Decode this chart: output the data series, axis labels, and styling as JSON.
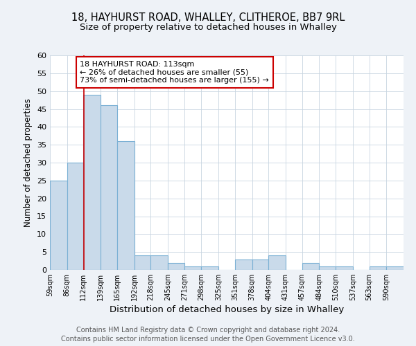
{
  "title_line1": "18, HAYHURST ROAD, WHALLEY, CLITHEROE, BB7 9RL",
  "title_line2": "Size of property relative to detached houses in Whalley",
  "xlabel": "Distribution of detached houses by size in Whalley",
  "ylabel": "Number of detached properties",
  "footnote1": "Contains HM Land Registry data © Crown copyright and database right 2024.",
  "footnote2": "Contains public sector information licensed under the Open Government Licence v3.0.",
  "bin_edges": [
    59,
    86,
    112,
    139,
    165,
    192,
    218,
    245,
    271,
    298,
    325,
    351,
    378,
    404,
    431,
    457,
    484,
    510,
    537,
    563,
    590
  ],
  "bar_heights": [
    25,
    30,
    49,
    46,
    36,
    4,
    4,
    2,
    1,
    1,
    0,
    3,
    3,
    4,
    0,
    2,
    1,
    1,
    0,
    1,
    1
  ],
  "tick_labels": [
    "59sqm",
    "86sqm",
    "112sqm",
    "139sqm",
    "165sqm",
    "192sqm",
    "218sqm",
    "245sqm",
    "271sqm",
    "298sqm",
    "325sqm",
    "351sqm",
    "378sqm",
    "404sqm",
    "431sqm",
    "457sqm",
    "484sqm",
    "510sqm",
    "537sqm",
    "563sqm",
    "590sqm"
  ],
  "bar_color": "#c9daea",
  "bar_edge_color": "#7ab0d4",
  "vline_x": 113,
  "vline_color": "#cc0000",
  "annotation_box_color": "#cc0000",
  "annotation_line1": "18 HAYHURST ROAD: 113sqm",
  "annotation_line2": "← 26% of detached houses are smaller (55)",
  "annotation_line3": "73% of semi-detached houses are larger (155) →",
  "ylim": [
    0,
    60
  ],
  "yticks": [
    0,
    5,
    10,
    15,
    20,
    25,
    30,
    35,
    40,
    45,
    50,
    55,
    60
  ],
  "background_color": "#eef2f7",
  "plot_bg_color": "#ffffff",
  "grid_color": "#c8d4e0",
  "title_fontsize": 10.5,
  "subtitle_fontsize": 9.5,
  "xlabel_fontsize": 9.5,
  "ylabel_fontsize": 8.5,
  "tick_fontsize": 7,
  "annotation_fontsize": 8,
  "footnote_fontsize": 7
}
